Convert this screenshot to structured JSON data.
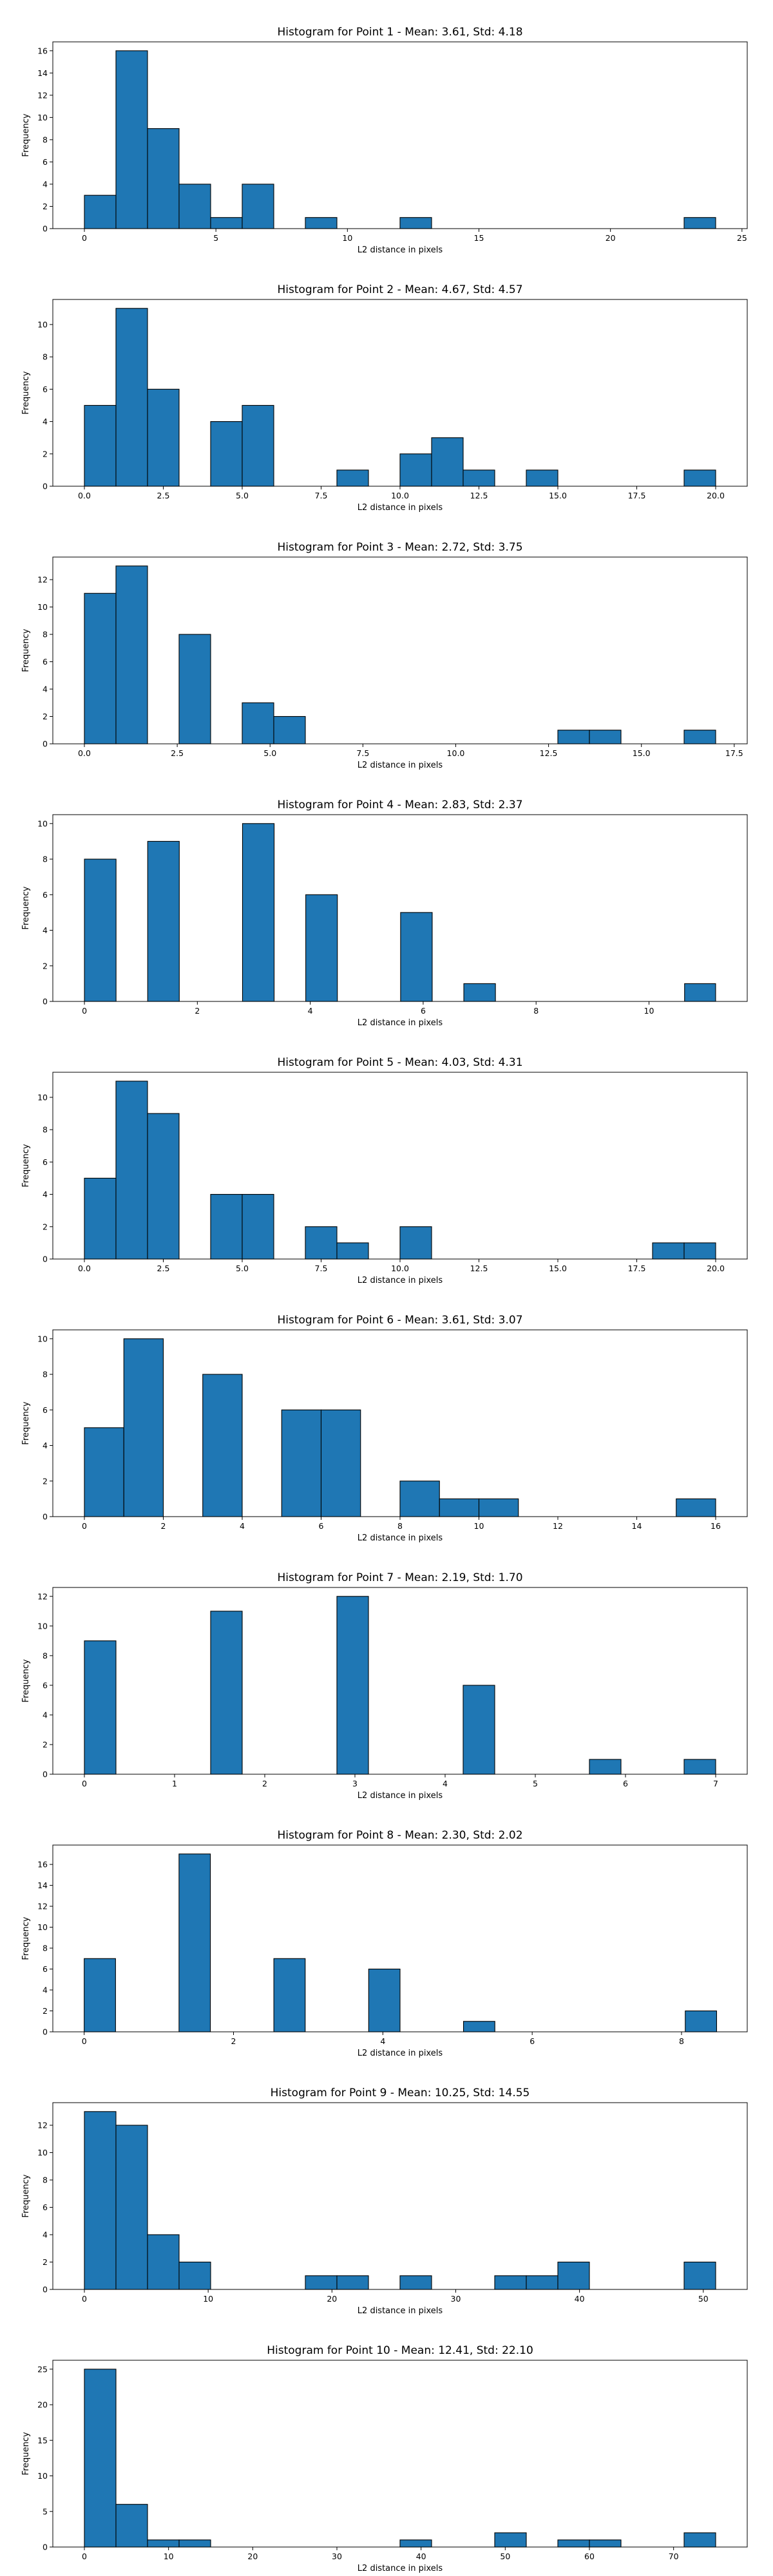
{
  "chart_data": [
    {
      "type": "bar",
      "title": "Histogram for Point 1 - Mean: 3.61, Std: 4.18",
      "xlabel": "L2 distance in pixels",
      "ylabel": "Frequency",
      "xlim": [
        -1.2,
        25.2
      ],
      "ylim": [
        0,
        16.8
      ],
      "xticks": [
        0,
        5,
        10,
        15,
        20,
        25
      ],
      "yticks": [
        0,
        2,
        4,
        6,
        8,
        10,
        12,
        14,
        16
      ],
      "bar_color": "#1f77b4",
      "bars": [
        {
          "x0": 0.0,
          "x1": 1.2,
          "value": 3
        },
        {
          "x0": 1.2,
          "x1": 2.4,
          "value": 16
        },
        {
          "x0": 2.4,
          "x1": 3.6,
          "value": 9
        },
        {
          "x0": 3.6,
          "x1": 4.8,
          "value": 4
        },
        {
          "x0": 4.8,
          "x1": 6.0,
          "value": 1
        },
        {
          "x0": 6.0,
          "x1": 7.2,
          "value": 4
        },
        {
          "x0": 8.4,
          "x1": 9.6,
          "value": 1
        },
        {
          "x0": 12.0,
          "x1": 13.2,
          "value": 1
        },
        {
          "x0": 22.8,
          "x1": 24.0,
          "value": 1
        }
      ]
    },
    {
      "type": "bar",
      "title": "Histogram for Point 2 - Mean: 4.67, Std: 4.57",
      "xlabel": "L2 distance in pixels",
      "ylabel": "Frequency",
      "xlim": [
        -1.0,
        21.0
      ],
      "ylim": [
        0,
        11.55
      ],
      "xticks": [
        0.0,
        2.5,
        5.0,
        7.5,
        10.0,
        12.5,
        15.0,
        17.5,
        20.0
      ],
      "yticks": [
        0,
        2,
        4,
        6,
        8,
        10
      ],
      "bar_color": "#1f77b4",
      "bars": [
        {
          "x0": 0.0,
          "x1": 1.0,
          "value": 5
        },
        {
          "x0": 1.0,
          "x1": 2.0,
          "value": 11
        },
        {
          "x0": 2.0,
          "x1": 3.0,
          "value": 6
        },
        {
          "x0": 4.0,
          "x1": 5.0,
          "value": 4
        },
        {
          "x0": 5.0,
          "x1": 6.0,
          "value": 5
        },
        {
          "x0": 8.0,
          "x1": 9.0,
          "value": 1
        },
        {
          "x0": 10.0,
          "x1": 11.0,
          "value": 2
        },
        {
          "x0": 11.0,
          "x1": 12.0,
          "value": 3
        },
        {
          "x0": 12.0,
          "x1": 13.0,
          "value": 1
        },
        {
          "x0": 14.0,
          "x1": 15.0,
          "value": 1
        },
        {
          "x0": 19.0,
          "x1": 20.0,
          "value": 1
        }
      ]
    },
    {
      "type": "bar",
      "title": "Histogram for Point 3 - Mean: 2.72, Std: 3.75",
      "xlabel": "L2 distance in pixels",
      "ylabel": "Frequency",
      "xlim": [
        -0.85,
        17.85
      ],
      "ylim": [
        0,
        13.65
      ],
      "xticks": [
        0.0,
        2.5,
        5.0,
        7.5,
        10.0,
        12.5,
        15.0,
        17.5
      ],
      "yticks": [
        0,
        2,
        4,
        6,
        8,
        10,
        12
      ],
      "bar_color": "#1f77b4",
      "bars": [
        {
          "x0": 0.0,
          "x1": 0.85,
          "value": 11
        },
        {
          "x0": 0.85,
          "x1": 1.7,
          "value": 13
        },
        {
          "x0": 2.55,
          "x1": 3.4,
          "value": 8
        },
        {
          "x0": 4.25,
          "x1": 5.1,
          "value": 3
        },
        {
          "x0": 5.1,
          "x1": 5.95,
          "value": 2
        },
        {
          "x0": 12.75,
          "x1": 13.6,
          "value": 1
        },
        {
          "x0": 13.6,
          "x1": 14.45,
          "value": 1
        },
        {
          "x0": 16.15,
          "x1": 17.0,
          "value": 1
        }
      ]
    },
    {
      "type": "bar",
      "title": "Histogram for Point 4 - Mean: 2.83, Std: 2.37",
      "xlabel": "L2 distance in pixels",
      "ylabel": "Frequency",
      "xlim": [
        -0.56,
        11.74
      ],
      "ylim": [
        0,
        10.5
      ],
      "xticks": [
        0,
        2,
        4,
        6,
        8,
        10
      ],
      "yticks": [
        0,
        2,
        4,
        6,
        8,
        10
      ],
      "bar_color": "#1f77b4",
      "bars": [
        {
          "x0": 0.0,
          "x1": 0.56,
          "value": 8
        },
        {
          "x0": 1.12,
          "x1": 1.68,
          "value": 9
        },
        {
          "x0": 2.8,
          "x1": 3.36,
          "value": 10
        },
        {
          "x0": 3.92,
          "x1": 4.48,
          "value": 6
        },
        {
          "x0": 5.6,
          "x1": 6.16,
          "value": 5
        },
        {
          "x0": 6.72,
          "x1": 7.28,
          "value": 1
        },
        {
          "x0": 10.63,
          "x1": 11.18,
          "value": 1
        }
      ]
    },
    {
      "type": "bar",
      "title": "Histogram for Point 5 - Mean: 4.03, Std: 4.31",
      "xlabel": "L2 distance in pixels",
      "ylabel": "Frequency",
      "xlim": [
        -1.0,
        21.0
      ],
      "ylim": [
        0,
        11.55
      ],
      "xticks": [
        0.0,
        2.5,
        5.0,
        7.5,
        10.0,
        12.5,
        15.0,
        17.5,
        20.0
      ],
      "yticks": [
        0,
        2,
        4,
        6,
        8,
        10
      ],
      "bar_color": "#1f77b4",
      "bars": [
        {
          "x0": 0.0,
          "x1": 1.0,
          "value": 5
        },
        {
          "x0": 1.0,
          "x1": 2.0,
          "value": 11
        },
        {
          "x0": 2.0,
          "x1": 3.0,
          "value": 9
        },
        {
          "x0": 4.0,
          "x1": 5.0,
          "value": 4
        },
        {
          "x0": 5.0,
          "x1": 6.0,
          "value": 4
        },
        {
          "x0": 7.0,
          "x1": 8.0,
          "value": 2
        },
        {
          "x0": 8.0,
          "x1": 9.0,
          "value": 1
        },
        {
          "x0": 10.0,
          "x1": 11.0,
          "value": 2
        },
        {
          "x0": 18.0,
          "x1": 19.0,
          "value": 1
        },
        {
          "x0": 19.0,
          "x1": 20.0,
          "value": 1
        }
      ]
    },
    {
      "type": "bar",
      "title": "Histogram for Point 6 - Mean: 3.61, Std: 3.07",
      "xlabel": "L2 distance in pixels",
      "ylabel": "Frequency",
      "xlim": [
        -0.8,
        16.8
      ],
      "ylim": [
        0,
        10.5
      ],
      "xticks": [
        0,
        2,
        4,
        6,
        8,
        10,
        12,
        14,
        16
      ],
      "yticks": [
        0,
        2,
        4,
        6,
        8,
        10
      ],
      "bar_color": "#1f77b4",
      "bars": [
        {
          "x0": 0.0,
          "x1": 1.0,
          "value": 5
        },
        {
          "x0": 1.0,
          "x1": 2.0,
          "value": 10
        },
        {
          "x0": 3.0,
          "x1": 4.0,
          "value": 8
        },
        {
          "x0": 5.0,
          "x1": 6.0,
          "value": 6
        },
        {
          "x0": 6.0,
          "x1": 7.0,
          "value": 6
        },
        {
          "x0": 8.0,
          "x1": 9.0,
          "value": 2
        },
        {
          "x0": 9.0,
          "x1": 10.0,
          "value": 1
        },
        {
          "x0": 10.0,
          "x1": 11.0,
          "value": 1
        },
        {
          "x0": 15.0,
          "x1": 16.0,
          "value": 1
        }
      ]
    },
    {
      "type": "bar",
      "title": "Histogram for Point 7 - Mean: 2.19, Std: 1.70",
      "xlabel": "L2 distance in pixels",
      "ylabel": "Frequency",
      "xlim": [
        -0.35,
        7.35
      ],
      "ylim": [
        0,
        12.6
      ],
      "xticks": [
        0,
        1,
        2,
        3,
        4,
        5,
        6,
        7
      ],
      "yticks": [
        0,
        2,
        4,
        6,
        8,
        10,
        12
      ],
      "bar_color": "#1f77b4",
      "bars": [
        {
          "x0": 0.0,
          "x1": 0.35,
          "value": 9
        },
        {
          "x0": 1.4,
          "x1": 1.75,
          "value": 11
        },
        {
          "x0": 2.8,
          "x1": 3.15,
          "value": 12
        },
        {
          "x0": 4.2,
          "x1": 4.55,
          "value": 6
        },
        {
          "x0": 5.6,
          "x1": 5.95,
          "value": 1
        },
        {
          "x0": 6.65,
          "x1": 7.0,
          "value": 1
        }
      ]
    },
    {
      "type": "bar",
      "title": "Histogram for Point 8 - Mean: 2.30, Std: 2.02",
      "xlabel": "L2 distance in pixels",
      "ylabel": "Frequency",
      "xlim": [
        -0.42,
        8.88
      ],
      "ylim": [
        0,
        17.85
      ],
      "xticks": [
        0,
        2,
        4,
        6,
        8
      ],
      "yticks": [
        0,
        2,
        4,
        6,
        8,
        10,
        12,
        14,
        16
      ],
      "bar_color": "#1f77b4",
      "bars": [
        {
          "x0": 0.0,
          "x1": 0.42,
          "value": 7
        },
        {
          "x0": 1.27,
          "x1": 1.69,
          "value": 17
        },
        {
          "x0": 2.54,
          "x1": 2.96,
          "value": 7
        },
        {
          "x0": 3.81,
          "x1": 4.23,
          "value": 6
        },
        {
          "x0": 5.08,
          "x1": 5.5,
          "value": 1
        },
        {
          "x0": 8.05,
          "x1": 8.47,
          "value": 2
        }
      ]
    },
    {
      "type": "bar",
      "title": "Histogram for Point 9 - Mean: 10.25, Std: 14.55",
      "xlabel": "L2 distance in pixels",
      "ylabel": "Frequency",
      "xlim": [
        -2.55,
        53.55
      ],
      "ylim": [
        0,
        13.65
      ],
      "xticks": [
        0,
        10,
        20,
        30,
        40,
        50
      ],
      "yticks": [
        0,
        2,
        4,
        6,
        8,
        10,
        12
      ],
      "bar_color": "#1f77b4",
      "bars": [
        {
          "x0": 0.0,
          "x1": 2.55,
          "value": 13
        },
        {
          "x0": 2.55,
          "x1": 5.1,
          "value": 12
        },
        {
          "x0": 5.1,
          "x1": 7.65,
          "value": 4
        },
        {
          "x0": 7.65,
          "x1": 10.2,
          "value": 2
        },
        {
          "x0": 17.85,
          "x1": 20.4,
          "value": 1
        },
        {
          "x0": 20.4,
          "x1": 22.95,
          "value": 1
        },
        {
          "x0": 25.5,
          "x1": 28.05,
          "value": 1
        },
        {
          "x0": 33.15,
          "x1": 35.7,
          "value": 1
        },
        {
          "x0": 35.7,
          "x1": 38.25,
          "value": 1
        },
        {
          "x0": 38.25,
          "x1": 40.8,
          "value": 2
        },
        {
          "x0": 48.45,
          "x1": 51.0,
          "value": 2
        }
      ]
    },
    {
      "type": "bar",
      "title": "Histogram for Point 10 - Mean: 12.41, Std: 22.10",
      "xlabel": "L2 distance in pixels",
      "ylabel": "Frequency",
      "xlim": [
        -3.75,
        78.75
      ],
      "ylim": [
        0,
        26.25
      ],
      "xticks": [
        0,
        10,
        20,
        30,
        40,
        50,
        60,
        70
      ],
      "yticks": [
        0,
        5,
        10,
        15,
        20,
        25
      ],
      "bar_color": "#1f77b4",
      "bars": [
        {
          "x0": 0.0,
          "x1": 3.75,
          "value": 25
        },
        {
          "x0": 3.75,
          "x1": 7.5,
          "value": 6
        },
        {
          "x0": 7.5,
          "x1": 11.25,
          "value": 1
        },
        {
          "x0": 11.25,
          "x1": 15.0,
          "value": 1
        },
        {
          "x0": 37.5,
          "x1": 41.25,
          "value": 1
        },
        {
          "x0": 48.75,
          "x1": 52.5,
          "value": 2
        },
        {
          "x0": 56.25,
          "x1": 60.0,
          "value": 1
        },
        {
          "x0": 60.0,
          "x1": 63.75,
          "value": 1
        },
        {
          "x0": 71.25,
          "x1": 75.0,
          "value": 2
        }
      ]
    }
  ]
}
